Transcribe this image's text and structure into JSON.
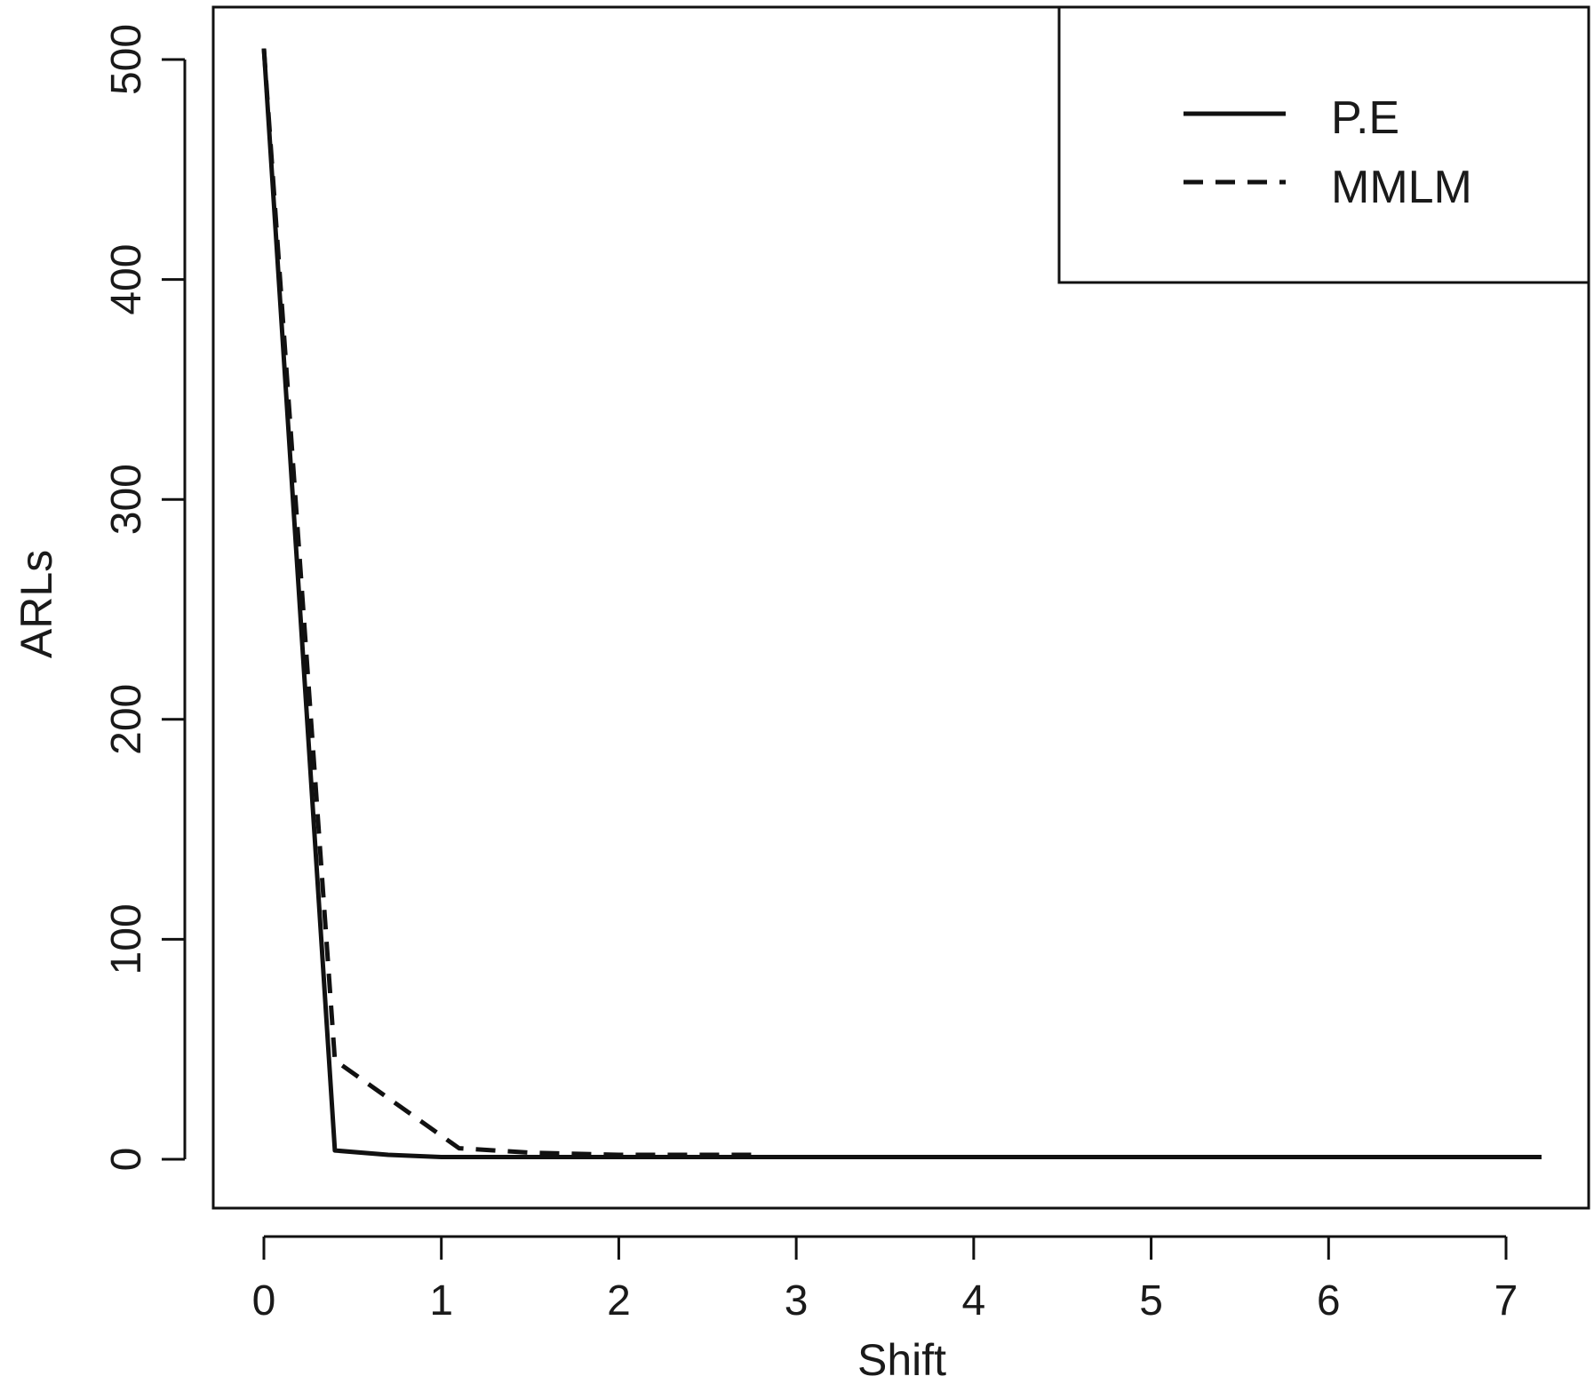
{
  "chart_data": {
    "type": "line",
    "xlabel": "Shift",
    "ylabel": "ARLs",
    "xlim": [
      0,
      7.2
    ],
    "ylim": [
      0,
      500
    ],
    "x_ticks": [
      0,
      1,
      2,
      3,
      4,
      5,
      6,
      7
    ],
    "y_ticks": [
      0,
      100,
      200,
      300,
      400,
      500
    ],
    "x_tick_labels": [
      "0",
      "1",
      "2",
      "3",
      "4",
      "5",
      "6",
      "7"
    ],
    "y_tick_labels": [
      "0",
      "100",
      "200",
      "300",
      "400",
      "500"
    ],
    "legend_position": "top-right",
    "series": [
      {
        "name": "P.E",
        "style": "solid",
        "x": [
          0,
          0.4,
          0.7,
          1.0,
          1.5,
          2.0,
          3.0,
          4.0,
          5.0,
          6.0,
          7.2
        ],
        "y": [
          505,
          4,
          2,
          1,
          1,
          1,
          1,
          1,
          1,
          1,
          1
        ]
      },
      {
        "name": "MMLM",
        "style": "dashed",
        "x": [
          0,
          0.4,
          1.1,
          1.5,
          2.0,
          2.8
        ],
        "y": [
          505,
          45,
          5,
          3,
          2,
          2
        ]
      }
    ],
    "colors": {
      "line": "#111111"
    }
  }
}
